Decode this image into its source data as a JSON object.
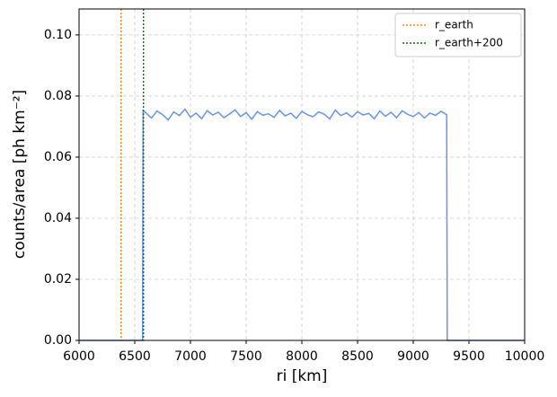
{
  "chart_data": {
    "type": "line",
    "xlabel": "ri [km]",
    "ylabel": "counts/area [ph km⁻²]",
    "xlim": [
      6000,
      10000
    ],
    "ylim": [
      0,
      0.1085
    ],
    "xticks": [
      6000,
      6500,
      7000,
      7500,
      8000,
      8500,
      9000,
      9500,
      10000
    ],
    "yticks": [
      {
        "value": 0,
        "label": "0.00"
      },
      0.02,
      0.04,
      0.06,
      0.08,
      {
        "value": 0.1,
        "label": "0.10"
      }
    ],
    "grid": true,
    "legend": "upper right",
    "series": [
      {
        "color": "#6495ed",
        "x": [
          6000,
          6570,
          6575,
          6600,
          6650,
          6700,
          6750,
          6800,
          6850,
          6900,
          6950,
          7000,
          7050,
          7100,
          7150,
          7200,
          7250,
          7300,
          7350,
          7400,
          7450,
          7500,
          7550,
          7600,
          7650,
          7700,
          7750,
          7800,
          7850,
          7900,
          7950,
          8000,
          8050,
          8100,
          8150,
          8200,
          8250,
          8300,
          8350,
          8400,
          8450,
          8500,
          8550,
          8600,
          8650,
          8700,
          8750,
          8800,
          8850,
          8900,
          8950,
          9000,
          9050,
          9100,
          9150,
          9200,
          9250,
          9300,
          9305,
          10000
        ],
        "values": [
          0,
          0,
          0.0752,
          0.0745,
          0.0728,
          0.0751,
          0.0739,
          0.0722,
          0.0748,
          0.0736,
          0.0757,
          0.0731,
          0.0744,
          0.0726,
          0.0752,
          0.0738,
          0.0747,
          0.0729,
          0.0741,
          0.0755,
          0.0733,
          0.0746,
          0.0724,
          0.0749,
          0.0737,
          0.0742,
          0.073,
          0.0753,
          0.0735,
          0.0744,
          0.0727,
          0.075,
          0.0739,
          0.0732,
          0.0748,
          0.0741,
          0.0725,
          0.0754,
          0.0736,
          0.0745,
          0.0731,
          0.0749,
          0.0738,
          0.0743,
          0.0726,
          0.0751,
          0.0734,
          0.0747,
          0.0729,
          0.0752,
          0.074,
          0.0733,
          0.0746,
          0.0728,
          0.0744,
          0.0737,
          0.075,
          0.0739,
          0,
          0
        ]
      }
    ],
    "vlines": [
      {
        "name": "r_earth",
        "color": "#ff8c00",
        "x": 6378
      },
      {
        "name": "r_earth+200",
        "color": "#008000",
        "x": 6578
      }
    ]
  }
}
